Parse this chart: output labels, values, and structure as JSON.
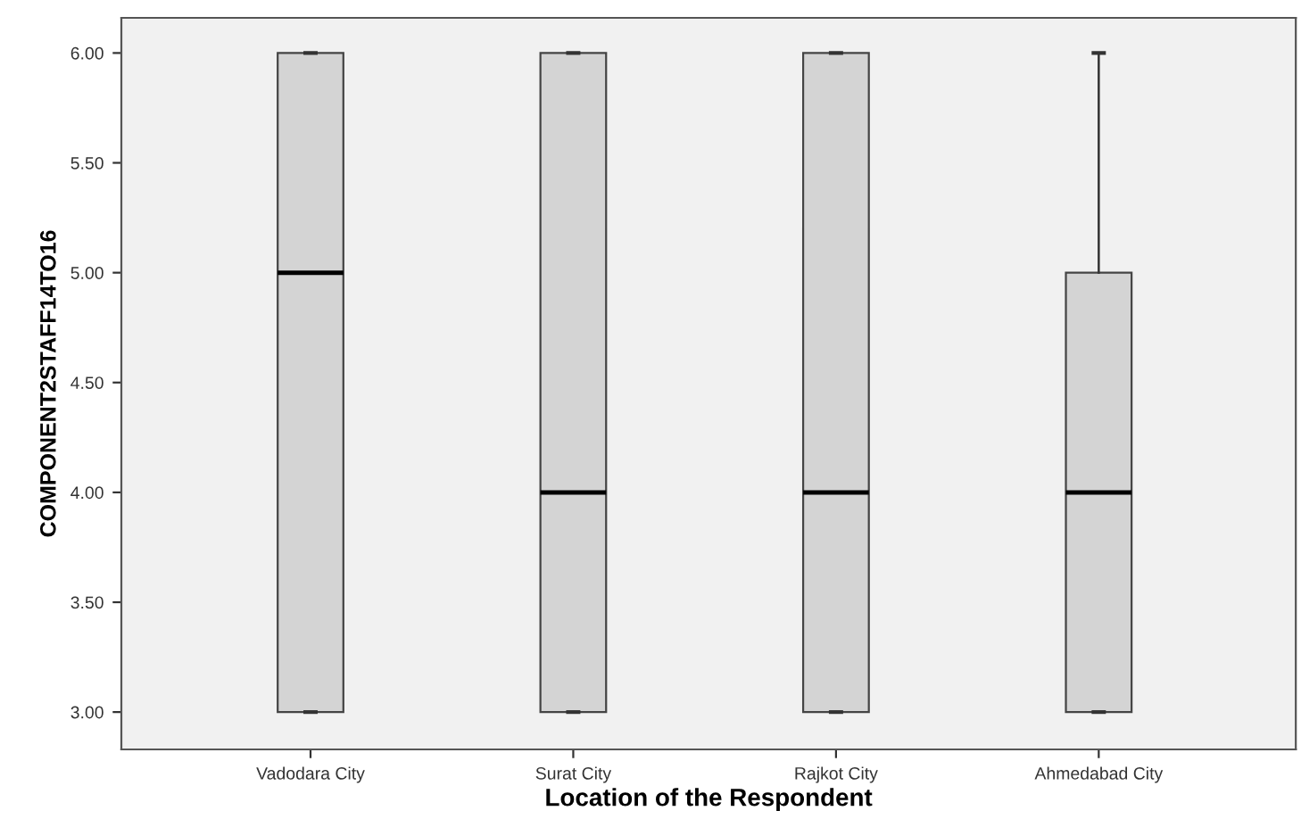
{
  "chart_data": {
    "type": "box",
    "xlabel": "Location of the Respondent",
    "ylabel": "COMPONENT2STAFF14TO16",
    "categories": [
      "Vadodara City",
      "Surat City",
      "Rajkot City",
      "Ahmedabad City"
    ],
    "boxes": [
      {
        "low": 3,
        "q1": 3,
        "median": 5,
        "q3": 6,
        "high": 6
      },
      {
        "low": 3,
        "q1": 3,
        "median": 4,
        "q3": 6,
        "high": 6
      },
      {
        "low": 3,
        "q1": 3,
        "median": 4,
        "q3": 6,
        "high": 6
      },
      {
        "low": 3,
        "q1": 3,
        "median": 4,
        "q3": 5,
        "high": 6
      }
    ],
    "color": "#d4d4d4",
    "ylim": [
      2.83,
      6.16
    ],
    "yticks": [
      {
        "value": 3,
        "label": "3.00"
      },
      {
        "value": 3.5,
        "label": "3.50"
      },
      {
        "value": 4,
        "label": "4.00"
      },
      {
        "value": 4.5,
        "label": "4.50"
      },
      {
        "value": 5,
        "label": "5.00"
      },
      {
        "value": 5.5,
        "label": "5.50"
      },
      {
        "value": 6,
        "label": "6.00"
      }
    ],
    "grid": false
  }
}
